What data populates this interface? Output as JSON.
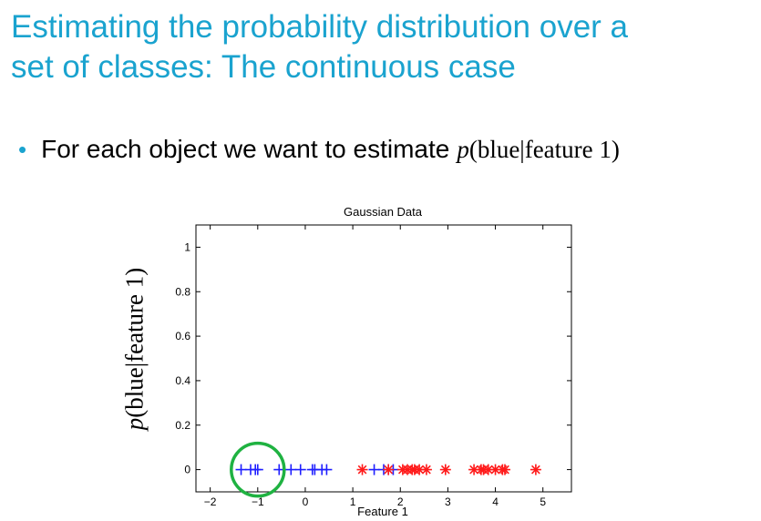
{
  "slide": {
    "title_line1": "Estimating the probability distribution over a",
    "title_line2": "set of classes: The continuous case",
    "bullet_dot": "•",
    "bullet_text": "For each object we want to estimate",
    "formula_p": "p",
    "formula_rest": "(blue|feature 1)"
  },
  "colors": {
    "title": "#1aa3cf",
    "blue_series": "#1f1fff",
    "red_series": "#ff1a1a",
    "circle": "#1fb241"
  },
  "chart_data": {
    "type": "scatter",
    "title": "Gaussian Data",
    "xlabel": "Feature 1",
    "ylabel_p": "p",
    "ylabel_rest": "(blue|feature 1)",
    "xlim": [
      -2.3,
      5.6
    ],
    "ylim": [
      -0.1,
      1.1
    ],
    "xticks": [
      -2,
      -1,
      0,
      1,
      2,
      3,
      4,
      5
    ],
    "yticks": [
      0,
      0.2,
      0.4,
      0.6,
      0.8,
      1
    ],
    "series": [
      {
        "color": "#1f1fff",
        "marker": "plus",
        "x": [
          -1.35,
          -1.15,
          -1.05,
          -1.0,
          -0.55,
          -0.3,
          -0.1,
          0.15,
          0.2,
          0.35,
          0.45,
          1.45,
          1.65,
          1.75,
          1.85
        ],
        "y": [
          0,
          0,
          0,
          0,
          0,
          0,
          0,
          0,
          0,
          0,
          0,
          0,
          0,
          0,
          0
        ]
      },
      {
        "color": "#ff1a1a",
        "marker": "asterisk",
        "x": [
          1.2,
          1.75,
          2.05,
          2.15,
          2.25,
          2.3,
          2.4,
          2.55,
          2.95,
          3.55,
          3.7,
          3.75,
          3.85,
          4.0,
          4.15,
          4.2,
          4.85
        ],
        "y": [
          0,
          0,
          0,
          0,
          0,
          0,
          0,
          0,
          0,
          0,
          0,
          0,
          0,
          0,
          0,
          0,
          0
        ]
      }
    ],
    "annotation_circle": {
      "x": -1.0,
      "y": 0
    }
  }
}
